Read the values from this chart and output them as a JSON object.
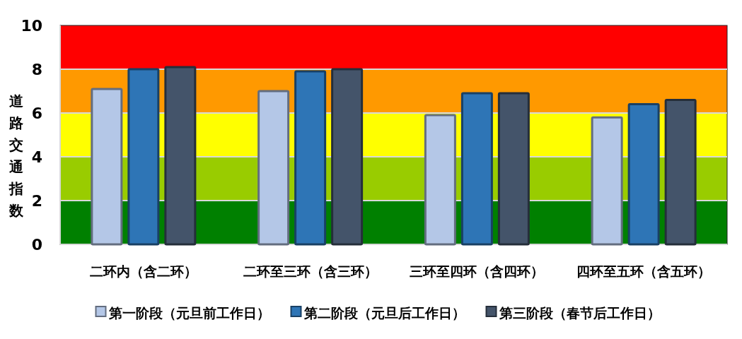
{
  "chart_data": {
    "type": "bar",
    "ylabel": "道路交通指数",
    "categories": [
      "二环内（含二环）",
      "二环至三环（含三环）",
      "三环至四环（含四环）",
      "四环至五环（含五环）"
    ],
    "series": [
      {
        "name": "第一阶段（元旦前工作日）",
        "color": "#b4c7e7",
        "values": [
          7.1,
          7.0,
          5.9,
          5.8
        ]
      },
      {
        "name": "第二阶段（元旦后工作日）",
        "color": "#2e75b6",
        "values": [
          8.0,
          7.9,
          6.9,
          6.4
        ]
      },
      {
        "name": "第三阶段（春节后工作日）",
        "color": "#44546a",
        "values": [
          8.1,
          8.0,
          6.9,
          6.6
        ]
      }
    ],
    "ylim": [
      0,
      10
    ],
    "yticks": [
      0,
      2,
      4,
      6,
      8,
      10
    ],
    "grid": "y",
    "legend": "bottom",
    "bands": [
      {
        "axis": "y",
        "from": 0,
        "to": 2,
        "color": "#008000"
      },
      {
        "axis": "y",
        "from": 2,
        "to": 4,
        "color": "#99cc00"
      },
      {
        "axis": "y",
        "from": 4,
        "to": 6,
        "color": "#ffff00"
      },
      {
        "axis": "y",
        "from": 6,
        "to": 8,
        "color": "#ff9900"
      },
      {
        "axis": "y",
        "from": 8,
        "to": 10,
        "color": "#ff0000"
      }
    ]
  }
}
